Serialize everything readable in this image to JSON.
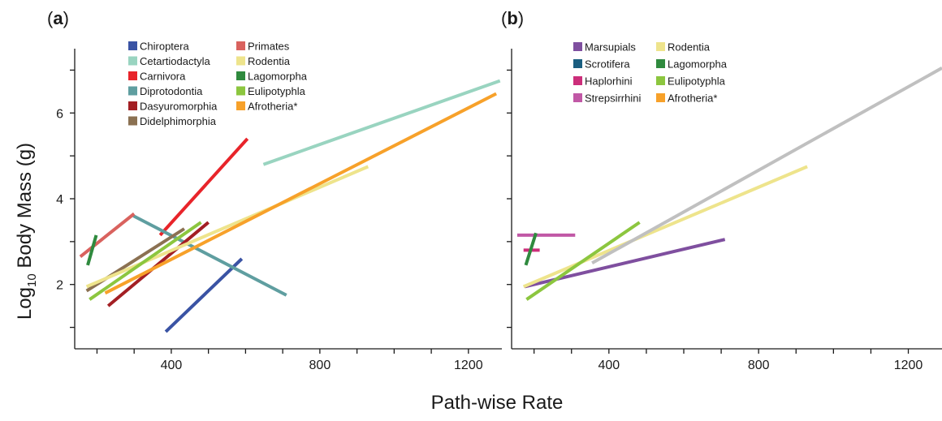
{
  "figure": {
    "ylabel_prefix": "Log",
    "ylabel_subscript": "10",
    "ylabel_suffix": " Body Mass (g)",
    "xlabel": "Path-wise Rate"
  },
  "chart_data": [
    {
      "type": "line",
      "panel": "a",
      "panel_label": "a",
      "xlabel": "Path-wise Rate",
      "ylabel": "Log10 Body Mass (g)",
      "xlim": [
        140,
        1290
      ],
      "ylim": [
        0.5,
        7.5
      ],
      "xticks": [
        200,
        300,
        400,
        500,
        600,
        700,
        800,
        900,
        1000,
        1100,
        1200
      ],
      "xtick_labels": [
        "",
        "",
        "400",
        "",
        "",
        "",
        "800",
        "",
        "",
        "",
        "1200"
      ],
      "yticks": [
        1,
        2,
        3,
        4,
        5,
        6,
        7
      ],
      "ytick_labels": [
        "",
        "2",
        "",
        "4",
        "",
        "6",
        ""
      ],
      "grid": false,
      "legend_position": "top-left",
      "series": [
        {
          "name": "Chiroptera",
          "color": "#3a53a4",
          "x": [
            385,
            590
          ],
          "y": [
            0.9,
            2.6
          ]
        },
        {
          "name": "Cetartiodactyla",
          "color": "#99d4c0",
          "x": [
            648,
            1285
          ],
          "y": [
            4.8,
            6.75
          ]
        },
        {
          "name": "Carnivora",
          "color": "#e8242a",
          "x": [
            370,
            605
          ],
          "y": [
            3.15,
            5.4
          ]
        },
        {
          "name": "Diprotodontia",
          "color": "#5f9ea0",
          "x": [
            298,
            710
          ],
          "y": [
            3.6,
            1.75
          ]
        },
        {
          "name": "Dasyuromorphia",
          "color": "#a31f24",
          "x": [
            230,
            500
          ],
          "y": [
            1.5,
            3.45
          ]
        },
        {
          "name": "Didelphimorphia",
          "color": "#8b7152",
          "x": [
            172,
            435
          ],
          "y": [
            1.85,
            3.3
          ]
        },
        {
          "name": "Primates",
          "color": "#d9625e",
          "x": [
            155,
            300
          ],
          "y": [
            2.65,
            3.65
          ]
        },
        {
          "name": "Rodentia",
          "color": "#eee48c",
          "x": [
            172,
            930
          ],
          "y": [
            1.95,
            4.75
          ]
        },
        {
          "name": "Lagomorpha",
          "color": "#2f8a3e",
          "x": [
            175,
            198
          ],
          "y": [
            2.45,
            3.15
          ]
        },
        {
          "name": "Eulipotyphla",
          "color": "#8cc63f",
          "x": [
            180,
            480
          ],
          "y": [
            1.65,
            3.45
          ]
        },
        {
          "name": "Afrotheria*",
          "color": "#f7a12a",
          "x": [
            222,
            1275
          ],
          "y": [
            1.8,
            6.45
          ]
        }
      ]
    },
    {
      "type": "line",
      "panel": "b",
      "panel_label": "b",
      "xlabel": "Path-wise Rate",
      "ylabel": "Log10 Body Mass (g)",
      "xlim": [
        140,
        1290
      ],
      "ylim": [
        0.5,
        7.5
      ],
      "xticks": [
        200,
        300,
        400,
        500,
        600,
        700,
        800,
        900,
        1000,
        1100,
        1200
      ],
      "xtick_labels": [
        "",
        "",
        "400",
        "",
        "",
        "",
        "800",
        "",
        "",
        "",
        "1200"
      ],
      "yticks": [
        1,
        2,
        3,
        4,
        5,
        6,
        7
      ],
      "ytick_labels": [
        "",
        "",
        "",
        "",
        "",
        "",
        ""
      ],
      "grid": false,
      "legend_position": "top-left",
      "series": [
        {
          "name": "Marsupials",
          "color": "#7f4f9f",
          "x": [
            175,
            710
          ],
          "y": [
            1.95,
            3.05
          ]
        },
        {
          "name": "Scrotifera",
          "color": "#1a5e80",
          "x": [],
          "y": []
        },
        {
          "name": "Haplorhini",
          "color": "#cc2e7a",
          "x": [
            172,
            215
          ],
          "y": [
            2.8,
            2.8
          ]
        },
        {
          "name": "Strepsirrhini",
          "color": "#c158a6",
          "x": [
            155,
            310
          ],
          "y": [
            3.15,
            3.15
          ]
        },
        {
          "name": "Rodentia",
          "color": "#eee48c",
          "x": [
            172,
            930
          ],
          "y": [
            1.95,
            4.75
          ]
        },
        {
          "name": "Lagomorpha",
          "color": "#2f8a3e",
          "x": [
            178,
            205
          ],
          "y": [
            2.45,
            3.2
          ]
        },
        {
          "name": "Eulipotyphla",
          "color": "#8cc63f",
          "x": [
            180,
            482
          ],
          "y": [
            1.65,
            3.45
          ]
        },
        {
          "name": "Afrotheria*",
          "color": "#f7a12a",
          "x": [],
          "y": []
        },
        {
          "color": "#c0c0c0",
          "x": [
            355,
            1290
          ],
          "y": [
            2.5,
            7.05
          ]
        }
      ]
    }
  ]
}
